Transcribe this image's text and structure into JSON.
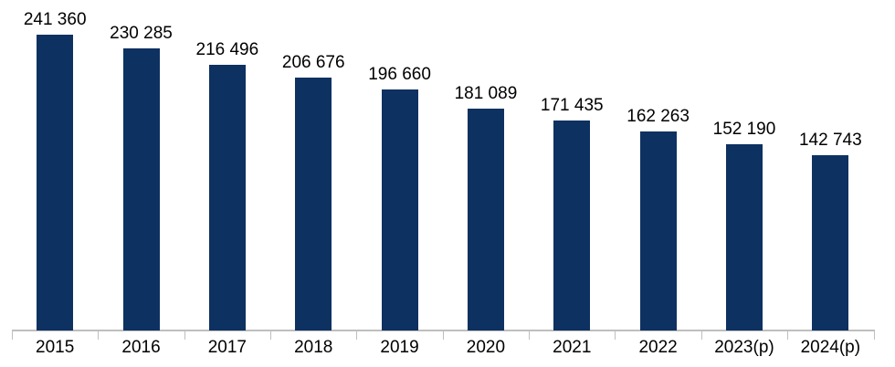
{
  "chart_data": {
    "type": "bar",
    "title": "",
    "xlabel": "",
    "ylabel": "",
    "categories": [
      "2015",
      "2016",
      "2017",
      "2018",
      "2019",
      "2020",
      "2021",
      "2022",
      "2023(p)",
      "2024(p)"
    ],
    "values": [
      241360,
      230285,
      216496,
      206676,
      196660,
      181089,
      171435,
      162263,
      152190,
      142743
    ],
    "value_labels": [
      "241 360",
      "230 285",
      "216 496",
      "206 676",
      "196 660",
      "181 089",
      "171 435",
      "162 263",
      "152 190",
      "142 743"
    ],
    "ylim": [
      0,
      270000
    ],
    "grid": false,
    "legend": null,
    "colors": {
      "bar": "#0d3161",
      "axis_line": "#bfbfbf",
      "tick": "#bfbfbf",
      "value_label_text": "#000000",
      "year_label_text": "#000000",
      "background": "#ffffff"
    }
  }
}
